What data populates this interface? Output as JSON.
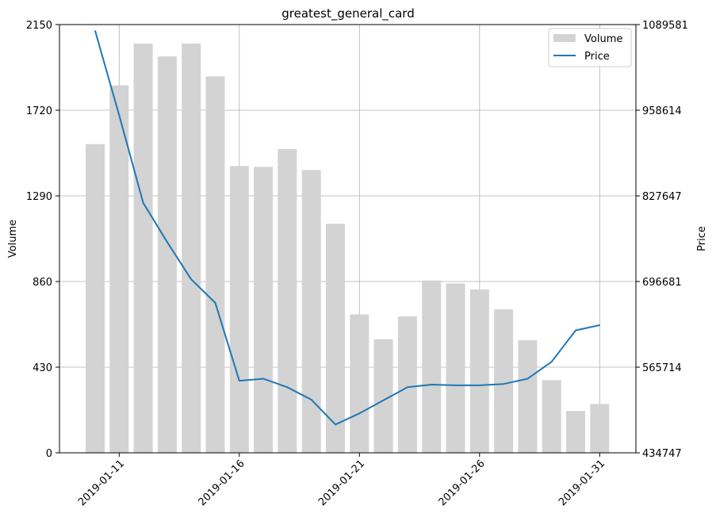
{
  "chart_data": {
    "type": "bar+line",
    "title": "greatest_general_card",
    "xlabel": "",
    "ylabel_left": "Volume",
    "ylabel_right": "Price",
    "dates": [
      "2019-01-10",
      "2019-01-11",
      "2019-01-12",
      "2019-01-13",
      "2019-01-14",
      "2019-01-15",
      "2019-01-16",
      "2019-01-17",
      "2019-01-18",
      "2019-01-19",
      "2019-01-20",
      "2019-01-21",
      "2019-01-22",
      "2019-01-23",
      "2019-01-24",
      "2019-01-25",
      "2019-01-26",
      "2019-01-27",
      "2019-01-28",
      "2019-01-29",
      "2019-01-30",
      "2019-01-31"
    ],
    "x_ticks": [
      "2019-01-11",
      "2019-01-16",
      "2019-01-21",
      "2019-01-26",
      "2019-01-31"
    ],
    "volume": {
      "name": "Volume",
      "color": "#d3d3d3",
      "values": [
        1550,
        1845,
        2055,
        1990,
        2055,
        1890,
        1440,
        1435,
        1525,
        1420,
        1150,
        695,
        570,
        685,
        865,
        850,
        820,
        720,
        565,
        365,
        210,
        245
      ]
    },
    "price": {
      "name": "Price",
      "color": "#1f77b4",
      "values": [
        1080000,
        951000,
        817000,
        757000,
        700000,
        664000,
        545000,
        548000,
        535000,
        516000,
        478000,
        495000,
        515000,
        535000,
        539000,
        538000,
        538000,
        540000,
        548000,
        574000,
        622000,
        630000
      ]
    },
    "ylim_left": [
      0,
      2150
    ],
    "ylim_right": [
      434747,
      1089581
    ],
    "yticks_left": [
      "0",
      "430",
      "860",
      "1290",
      "1720",
      "2150"
    ],
    "yticks_right": [
      "434747",
      "565714",
      "696681",
      "827647",
      "958614",
      "1089581"
    ],
    "grid": true,
    "legend_position": "top-right"
  }
}
